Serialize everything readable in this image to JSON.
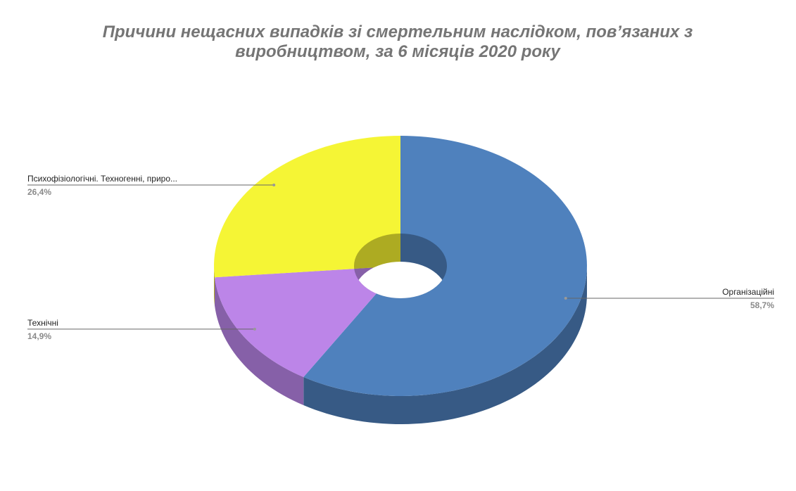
{
  "chart_data": {
    "type": "pie",
    "title": "Причини нещасних випадків зі смертельним наслідком, пов’язаних з виробництвом, за 6 місяців 2020 року",
    "categories": [
      "Організаційні",
      "Технічні",
      "Психофізіологічні. Техногенні, приро..."
    ],
    "values": [
      58.7,
      14.9,
      26.4
    ],
    "value_labels": [
      "58,7%",
      "14,9%",
      "26,4%"
    ],
    "colors": [
      "#4f81bd",
      "#bc85e8",
      "#f5f535"
    ],
    "side_colors": [
      "#375a85",
      "#8660a8",
      "#adab22"
    ]
  }
}
